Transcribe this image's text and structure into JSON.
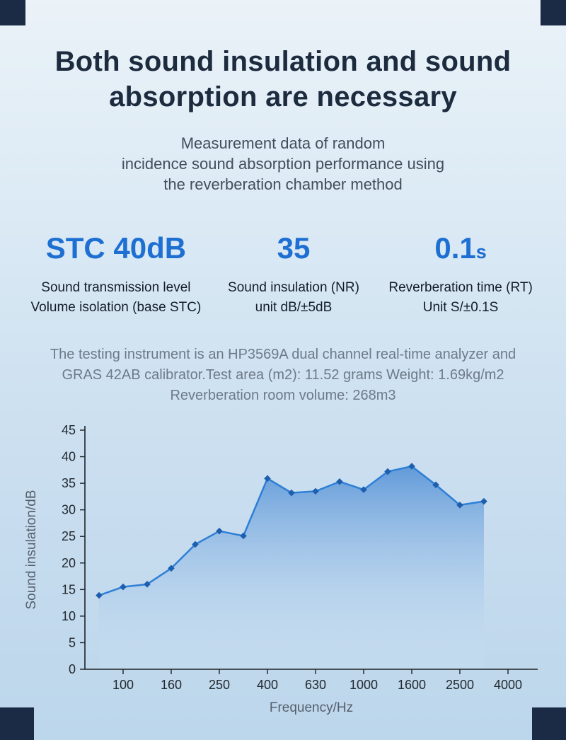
{
  "colors": {
    "background_top": "#ebf2f8",
    "background_bottom": "#bcd6eb",
    "corner_navy": "#1b2b45",
    "heading_navy": "#1d2b3f",
    "accent_blue": "#1e6fd2",
    "body_gray": "#6e7a88"
  },
  "header": {
    "title": "Both sound insulation and sound\nabsorption are necessary",
    "subtitle": "Measurement data of random\nincidence sound absorption performance using\nthe reverberation chamber method"
  },
  "stats": [
    {
      "value": "STC 40dB",
      "suffix": "",
      "label": "Sound transmission level\nVolume isolation (base STC)"
    },
    {
      "value": "35",
      "suffix": "",
      "label": "Sound insulation (NR)\nunit dB/±5dB"
    },
    {
      "value": "0.1",
      "suffix": "s",
      "label": "Reverberation time (RT)\nUnit S/±0.1S"
    }
  ],
  "description": "The testing instrument is an HP3569A dual channel real-time analyzer and\nGRAS 42AB calibrator.Test area (m2): 11.52 grams Weight: 1.69kg/m2\nReverberation room volume: 268m3",
  "chart_data": {
    "type": "area",
    "title": "",
    "xlabel": "Frequency/Hz",
    "ylabel": "Sound insulation/dB",
    "x_bands_hz": [
      80,
      100,
      125,
      160,
      200,
      250,
      315,
      400,
      500,
      630,
      800,
      1000,
      1250,
      1600,
      2000,
      2500,
      3150
    ],
    "values": [
      13.9,
      15.5,
      16.0,
      19.0,
      23.5,
      26.0,
      25.1,
      35.9,
      33.2,
      33.5,
      35.3,
      33.8,
      37.2,
      38.2,
      34.7,
      30.9,
      31.6
    ],
    "x_tick_labels": [
      "100",
      "160",
      "250",
      "400",
      "630",
      "1000",
      "1600",
      "2500",
      "4000"
    ],
    "x_tick_indices": [
      1,
      3,
      5,
      7,
      9,
      11,
      13,
      15,
      17
    ],
    "ylim": [
      0,
      45
    ],
    "y_ticks": [
      0,
      5,
      10,
      15,
      20,
      25,
      30,
      35,
      40,
      45
    ],
    "x_scale": "log-band-index",
    "grid": false,
    "legend": "none",
    "line_color": "#2e7fd6",
    "marker_color": "#1d5fae",
    "area_top_color": "#4a8bd4",
    "area_bottom_color": "#d7e8f7"
  }
}
